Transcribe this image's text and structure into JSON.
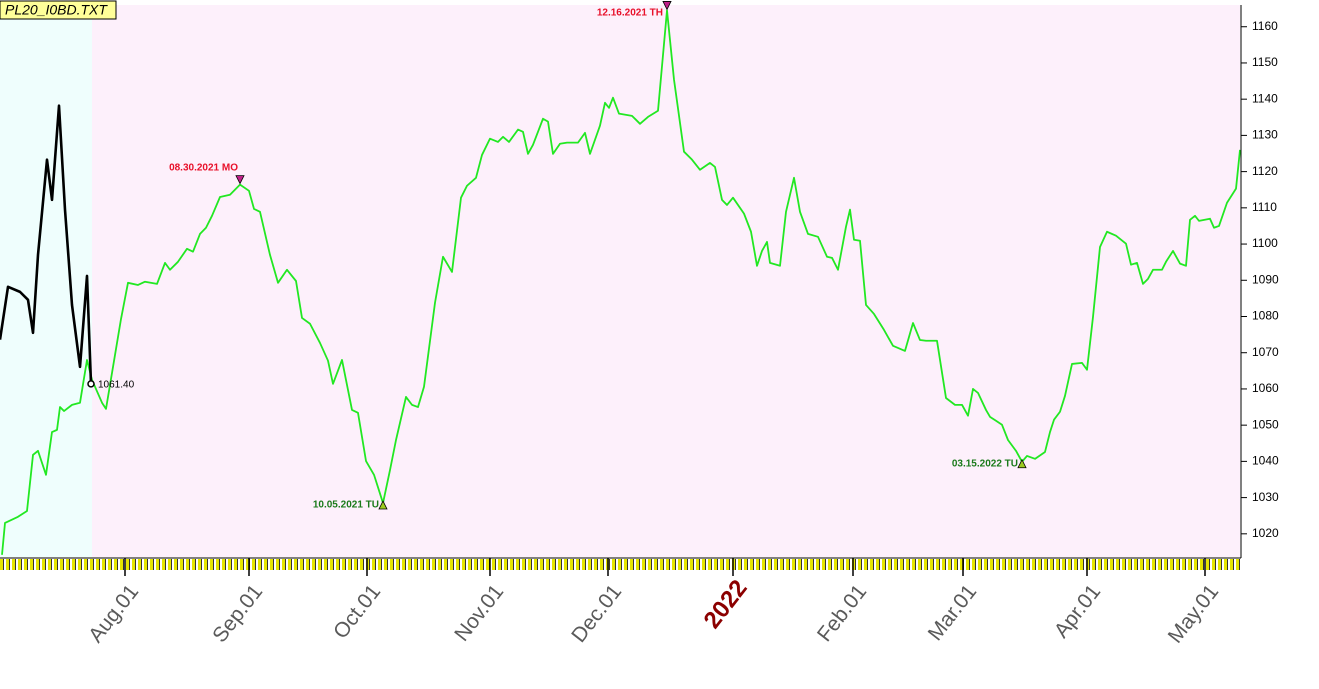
{
  "chart_data": {
    "type": "line",
    "title": "PL20_I0BD.TXT",
    "xlim": [
      0,
      248
    ],
    "ylim": [
      1013.6,
      1166
    ],
    "yticks": [
      1020,
      1030,
      1040,
      1050,
      1060,
      1070,
      1080,
      1090,
      1100,
      1110,
      1120,
      1130,
      1140,
      1150,
      1160
    ],
    "xticks": [
      {
        "value": 25,
        "label": "Aug.01"
      },
      {
        "value": 49.8,
        "label": "Sep.01"
      },
      {
        "value": 73.4,
        "label": "Oct.01"
      },
      {
        "value": 98,
        "label": "Nov.01"
      },
      {
        "value": 121.6,
        "label": "Dec.01"
      },
      {
        "value": 146.6,
        "label": "2022"
      },
      {
        "value": 170.6,
        "label": "Feb.01"
      },
      {
        "value": 192.6,
        "label": "Mar.01"
      },
      {
        "value": 217.4,
        "label": "Apr.01"
      },
      {
        "value": 241,
        "label": "May.01"
      }
    ],
    "regions": [
      {
        "xlim": [
          0,
          18.4
        ],
        "color": "#effefd"
      },
      {
        "xlim": [
          18.4,
          248
        ],
        "color": "#fdf0fb"
      }
    ],
    "series": [
      {
        "color": "#22e822",
        "x": [
          0.4,
          1,
          3.6,
          5.4,
          6.6,
          7.6,
          9.2,
          10.4,
          11.4,
          12,
          12.8,
          14.4,
          16,
          17.4,
          18.4,
          20.4,
          21.2,
          22,
          24.2,
          25.6,
          27.6,
          29,
          31.4,
          33,
          34,
          35.6,
          37.4,
          38.6,
          40,
          41.2,
          42.4,
          44,
          46,
          48,
          49.8,
          50.8,
          52,
          54,
          55.6,
          57.4,
          59.2,
          60.4,
          62,
          64,
          65.6,
          66.6,
          68.4,
          70.4,
          71.6,
          73.2,
          74.8,
          76.6,
          78,
          79.2,
          81.2,
          82.4,
          83.6,
          84.8,
          87,
          88.6,
          90.4,
          92.2,
          93.4,
          95.2,
          96.4,
          98,
          99.6,
          100.6,
          101.8,
          103.6,
          104.6,
          105.6,
          106.6,
          108.6,
          109.6,
          110.6,
          112,
          113.4,
          115.6,
          117,
          118,
          120,
          121,
          121.8,
          122.6,
          123.8,
          126.4,
          128,
          129.6,
          131.6,
          133.4,
          134.8,
          136.8,
          138.4,
          140,
          142,
          143,
          144.4,
          145.4,
          146.6,
          148.8,
          150.2,
          151.4,
          152.4,
          153.4,
          154,
          156,
          157.2,
          158.8,
          160,
          161.6,
          163.6,
          165.4,
          166.4,
          167.6,
          169.2,
          170,
          170.8,
          172,
          173.2,
          174.8,
          176.8,
          178.6,
          181,
          182.6,
          184,
          185.2,
          187.4,
          189.2,
          191,
          192.4,
          193.6,
          194.6,
          195.6,
          197.2,
          198,
          199.2,
          200.4,
          201.6,
          203.2,
          204.4,
          205.4,
          207,
          209,
          210,
          210.8,
          212,
          213,
          214.4,
          216.4,
          217.4,
          218.6,
          220,
          221.4,
          223.2,
          225.2,
          226.2,
          227.4,
          228.6,
          229.6,
          230.6,
          232.4,
          233.2,
          234.6,
          236,
          237.2,
          238,
          239,
          239.8,
          242,
          242.8,
          243.8,
          245.4,
          247.2,
          248
        ],
        "values": [
          1014.2,
          1023,
          1024.7,
          1026.3,
          1041.8,
          1042.9,
          1036.3,
          1048.1,
          1048.7,
          1055,
          1053.9,
          1055.6,
          1056.2,
          1068,
          1062.5,
          1056.2,
          1054.5,
          1061.1,
          1079.3,
          1089.3,
          1088.7,
          1089.6,
          1089,
          1094.8,
          1092.9,
          1095.1,
          1098.7,
          1097.9,
          1102.8,
          1104.5,
          1107.8,
          1113,
          1113.6,
          1116.4,
          1114.7,
          1109.7,
          1108.9,
          1097,
          1089.3,
          1092.9,
          1089.8,
          1079.6,
          1078,
          1072.7,
          1067.8,
          1061.4,
          1068,
          1054.2,
          1053.4,
          1040.1,
          1036.3,
          1028.5,
          1037.6,
          1045.9,
          1057.8,
          1055.6,
          1055,
          1060.6,
          1083.8,
          1096.5,
          1092.3,
          1112.8,
          1116.1,
          1118.3,
          1124.6,
          1129.1,
          1128.2,
          1129.6,
          1128.2,
          1131.6,
          1131,
          1124.9,
          1127.4,
          1134.6,
          1133.8,
          1124.9,
          1127.7,
          1128,
          1128,
          1130.7,
          1124.9,
          1132.7,
          1139,
          1137.6,
          1140.4,
          1136,
          1135.4,
          1133.2,
          1135.1,
          1136.8,
          1164.5,
          1145.4,
          1125.5,
          1123.3,
          1120.5,
          1122.4,
          1121.3,
          1112.2,
          1110.8,
          1112.8,
          1108.4,
          1103.4,
          1094,
          1098.1,
          1100.6,
          1094.8,
          1094,
          1108.9,
          1118.3,
          1108.9,
          1102.8,
          1102,
          1096.5,
          1096.2,
          1092.9,
          1104.8,
          1109.5,
          1101.2,
          1100.9,
          1083.2,
          1080.7,
          1076.3,
          1071.9,
          1070.5,
          1078.2,
          1073.5,
          1073.3,
          1073.3,
          1057.5,
          1055.6,
          1055.6,
          1052.6,
          1060,
          1058.9,
          1054.2,
          1052.3,
          1051.2,
          1050.1,
          1045.9,
          1042.9,
          1039.9,
          1041.5,
          1040.7,
          1042.6,
          1048.1,
          1051.5,
          1053.7,
          1058.1,
          1066.9,
          1067.2,
          1065.3,
          1079.9,
          1099.2,
          1103.4,
          1102.3,
          1100.1,
          1094.3,
          1094.8,
          1089,
          1090.4,
          1092.9,
          1092.9,
          1095.1,
          1098.1,
          1094.6,
          1094,
          1106.7,
          1107.8,
          1106.4,
          1107,
          1104.5,
          1105,
          1111.4,
          1115.3,
          1126
        ]
      },
      {
        "color": "#000000",
        "x": [
          0,
          1.6,
          4,
          5.6,
          6.6,
          7.6,
          9.4,
          10.4,
          11.8,
          13,
          14.4,
          16,
          17.4,
          18.2
        ],
        "values": [
          1073.6,
          1088.2,
          1086.8,
          1084.6,
          1075.5,
          1097,
          1123.3,
          1112.2,
          1138.2,
          1109.5,
          1083.2,
          1066.1,
          1091.2,
          1061.4
        ],
        "value_labels": [
          null,
          null,
          null,
          null,
          null,
          null,
          null,
          null,
          null,
          null,
          null,
          null,
          null,
          "1061.40"
        ]
      }
    ],
    "annotations": [
      {
        "text": "08.30.2021 MO",
        "x": 48,
        "y": 1116.4,
        "color": "#e8102a",
        "marker": "down"
      },
      {
        "text": "10.05.2021 TU",
        "x": 76.6,
        "y": 1028.5,
        "color": "#1a7a1a",
        "marker": "up"
      },
      {
        "text": "12.16.2021 TH",
        "x": 133.4,
        "y": 1164.5,
        "color": "#e8102a",
        "marker": "down"
      },
      {
        "text": "03.15.2022 TU",
        "x": 204.4,
        "y": 1039.9,
        "color": "#1a7a1a",
        "marker": "up"
      }
    ]
  }
}
